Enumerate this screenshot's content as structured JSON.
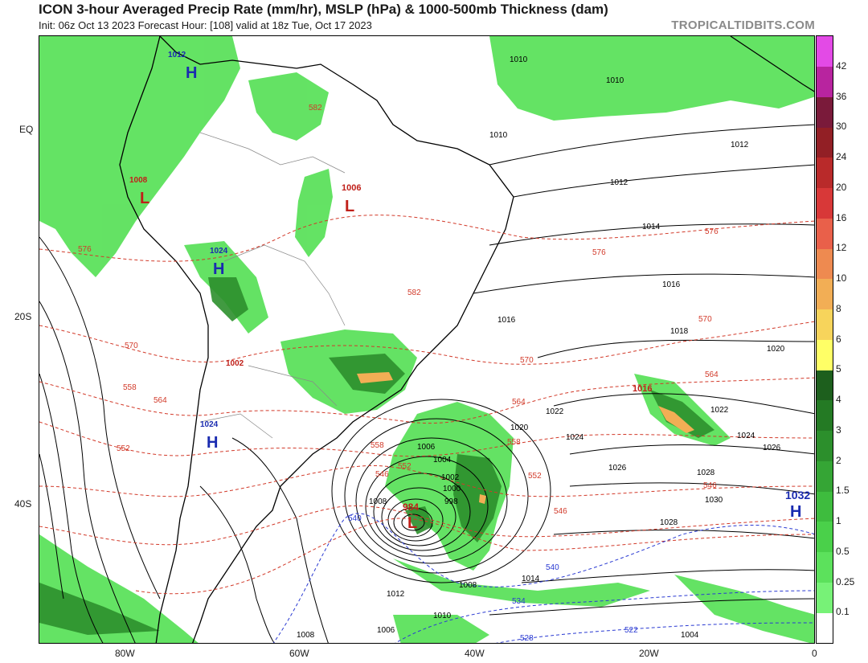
{
  "header": {
    "title": "ICON 3-hour Averaged Precip Rate (mm/hr), MSLP (hPa) & 1000-500mb Thickness (dam)",
    "subtitle": "Init: 06z Oct 13 2023   Forecast Hour: [108]   valid at 18z Tue, Oct 17 2023",
    "brand": "TROPICALTIDBITS.COM"
  },
  "axes": {
    "lat_labels": [
      "EQ",
      "20S",
      "40S"
    ],
    "lon_labels": [
      "80W",
      "60W",
      "40W",
      "20W",
      "0"
    ]
  },
  "colorbar": {
    "labels": [
      "0.1",
      "0.25",
      "0.5",
      "1",
      "1.5",
      "2",
      "3",
      "4",
      "5",
      "6",
      "8",
      "10",
      "12",
      "16",
      "20",
      "24",
      "30",
      "36",
      "42"
    ],
    "colors": [
      "#ffffff",
      "#77f277",
      "#5ce15c",
      "#4ad04a",
      "#3ebc3e",
      "#35a535",
      "#2c8f2c",
      "#247a24",
      "#1d5f1d",
      "#ffff66",
      "#f7d45b",
      "#f2ae55",
      "#ee8a50",
      "#e9604a",
      "#d83838",
      "#b92a2a",
      "#921f25",
      "#7a1a3a",
      "#b8249f",
      "#e34ae6"
    ]
  },
  "pressure_systems": [
    {
      "type": "H",
      "value": "1012"
    },
    {
      "type": "L",
      "value": "1008"
    },
    {
      "type": "L",
      "value": "1006"
    },
    {
      "type": "H",
      "value": "1024"
    },
    {
      "type": "L",
      "value": "1002"
    },
    {
      "type": "H",
      "value": "1024"
    },
    {
      "type": "L",
      "value": "1016"
    },
    {
      "type": "L",
      "value": "984"
    },
    {
      "type": "H",
      "value": "1032"
    }
  ],
  "isobar_labels": [
    "1010",
    "1010",
    "1010",
    "1012",
    "1012",
    "1014",
    "1016",
    "1016",
    "1018",
    "1020",
    "1020",
    "1022",
    "1022",
    "1024",
    "1024",
    "1026",
    "1026",
    "1028",
    "1028",
    "1030",
    "1008",
    "1008",
    "1006",
    "1004",
    "1002",
    "1000",
    "998",
    "1014",
    "1012",
    "1010",
    "1008",
    "1006",
    "1004"
  ],
  "thickness_labels": [
    "576",
    "576",
    "576",
    "582",
    "582",
    "570",
    "570",
    "570",
    "564",
    "564",
    "564",
    "558",
    "558",
    "558",
    "552",
    "552",
    "552",
    "546",
    "546",
    "546",
    "540",
    "540",
    "534",
    "528",
    "522"
  ],
  "colors": {
    "precip_light": "#5ce15c",
    "precip_heavy": "#2c8f2c",
    "isobar": "#000000",
    "thickness_warm": "#d23a2a",
    "thickness_cold": "#2a3ad2",
    "high_marker": "#1a2bb0",
    "low_marker": "#c0201a"
  }
}
